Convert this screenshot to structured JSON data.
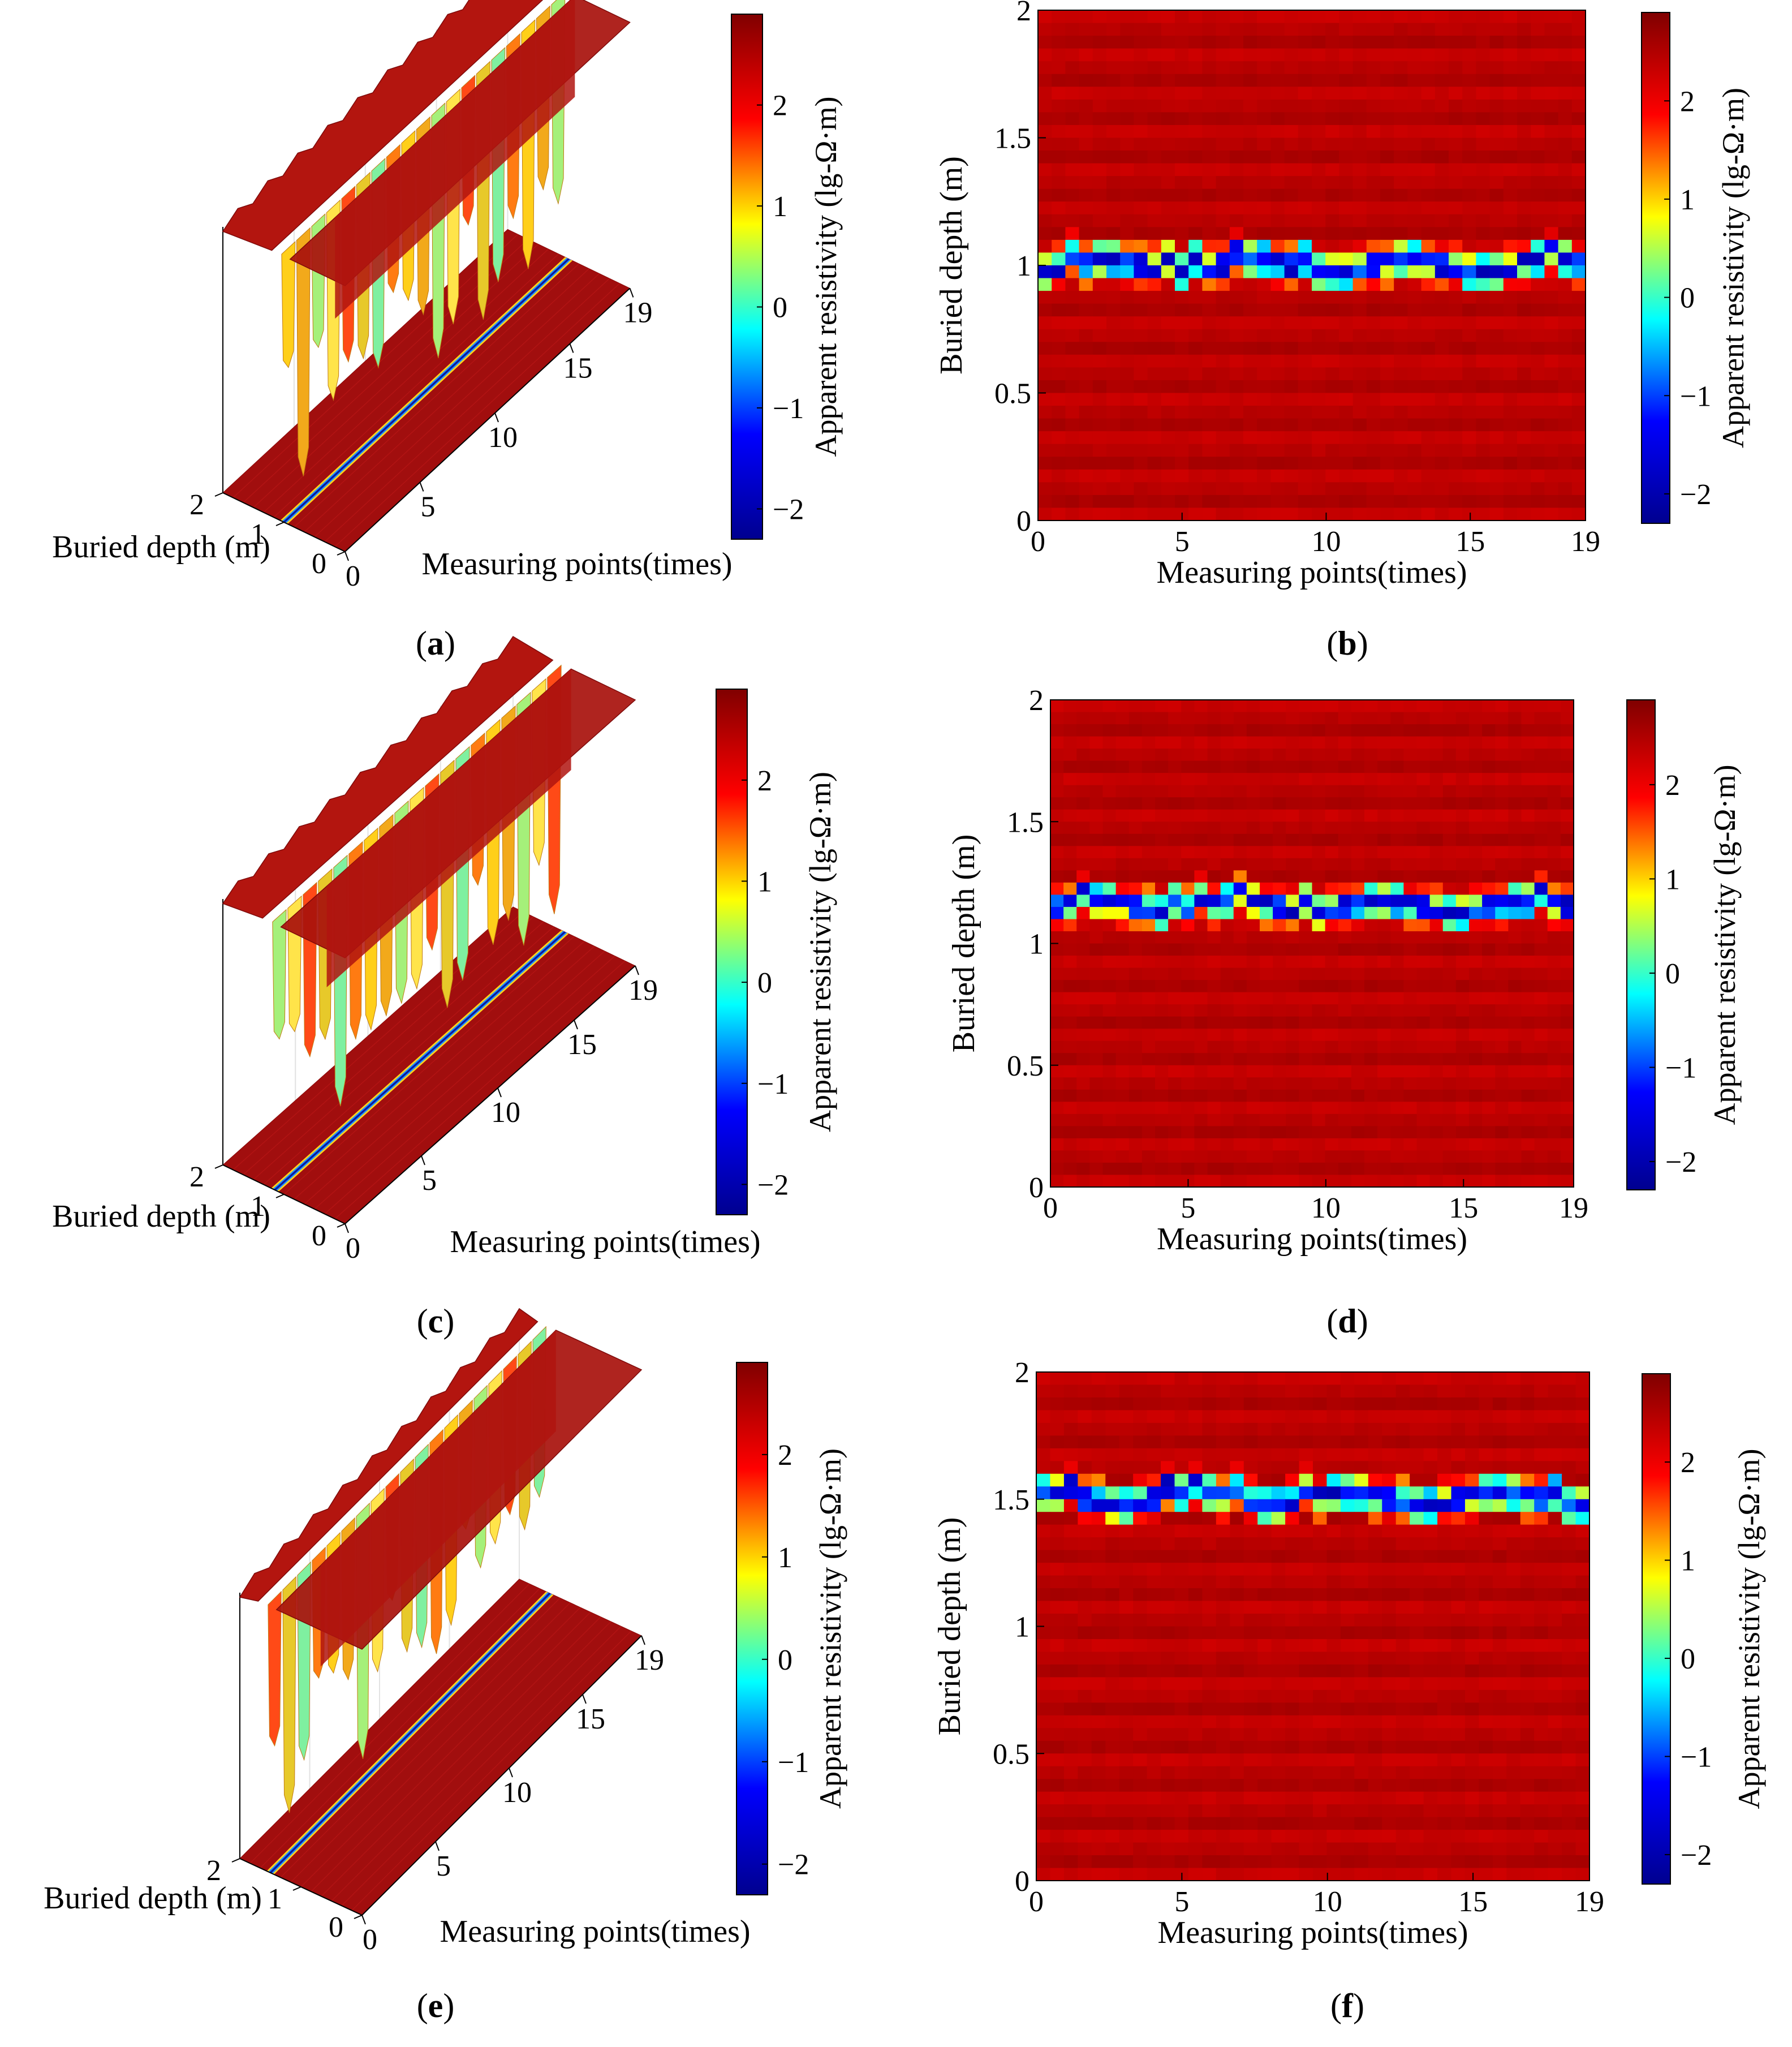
{
  "figure": {
    "colorbar_label": "Apparent resistivity (lg-Ω·m)",
    "colorbar_ticks": [
      "2",
      "1",
      "0",
      "−1",
      "−2"
    ],
    "colorbar_range": [
      -2.3,
      2.9
    ],
    "colormap": [
      "#00008f",
      "#0000ff",
      "#00ffff",
      "#ffff00",
      "#ff0000",
      "#800000"
    ]
  },
  "chart_data": [
    {
      "id": "a",
      "type": "surface3d",
      "label_open": "(",
      "label": "a",
      "label_close": ")",
      "xlabel": "Measuring points(times)",
      "ylabel": "Buried depth (m)",
      "x_ticks": [
        "0",
        "5",
        "10",
        "15",
        "19"
      ],
      "y_ticks": [
        "0",
        "1",
        "2"
      ],
      "x_range": [
        0,
        19
      ],
      "y_range": [
        0,
        2
      ],
      "anomaly_depth": 1.0
    },
    {
      "id": "b",
      "type": "heatmap",
      "label_open": "(",
      "label": "b",
      "label_close": ")",
      "xlabel": "Measuring points(times)",
      "ylabel": "Buried depth (m)",
      "x_ticks": [
        "0",
        "5",
        "10",
        "15",
        "19"
      ],
      "y_ticks": [
        "0",
        "0.5",
        "1",
        "1.5",
        "2"
      ],
      "x_range": [
        0,
        19
      ],
      "y_range": [
        0,
        2
      ],
      "anomaly_depth": 1.0,
      "background_value": 2.5,
      "anomaly_min_value": -2.0
    },
    {
      "id": "c",
      "type": "surface3d",
      "label_open": "(",
      "label": "c",
      "label_close": ")",
      "xlabel": "Measuring points(times)",
      "ylabel": "Buried depth (m)",
      "x_ticks": [
        "0",
        "5",
        "10",
        "15",
        "19"
      ],
      "y_ticks": [
        "0",
        "1",
        "2"
      ],
      "x_range": [
        0,
        19
      ],
      "y_range": [
        0,
        2
      ],
      "anomaly_depth": 1.15
    },
    {
      "id": "d",
      "type": "heatmap",
      "label_open": "(",
      "label": "d",
      "label_close": ")",
      "xlabel": "Measuring points(times)",
      "ylabel": "Buried depth (m)",
      "x_ticks": [
        "0",
        "5",
        "10",
        "15",
        "19"
      ],
      "y_ticks": [
        "0",
        "0.5",
        "1",
        "1.5",
        "2"
      ],
      "x_range": [
        0,
        19
      ],
      "y_range": [
        0,
        2
      ],
      "anomaly_depth": 1.15,
      "background_value": 2.5,
      "anomaly_min_value": -2.0
    },
    {
      "id": "e",
      "type": "surface3d",
      "label_open": "(",
      "label": "e",
      "label_close": ")",
      "xlabel": "Measuring points(times)",
      "ylabel": "Buried depth (m)",
      "x_ticks": [
        "0",
        "5",
        "10",
        "15",
        "19"
      ],
      "y_ticks": [
        "0",
        "1",
        "2"
      ],
      "x_range": [
        0,
        19
      ],
      "y_range": [
        0,
        2
      ],
      "anomaly_depth": 1.5
    },
    {
      "id": "f",
      "type": "heatmap",
      "label_open": "(",
      "label": "f",
      "label_close": ")",
      "xlabel": "Measuring points(times)",
      "ylabel": "Buried depth (m)",
      "x_ticks": [
        "0",
        "5",
        "10",
        "15",
        "19"
      ],
      "y_ticks": [
        "0",
        "0.5",
        "1",
        "1.5",
        "2"
      ],
      "x_range": [
        0,
        19
      ],
      "y_range": [
        0,
        2
      ],
      "anomaly_depth": 1.5,
      "background_value": 2.5,
      "anomaly_min_value": -2.0
    }
  ]
}
